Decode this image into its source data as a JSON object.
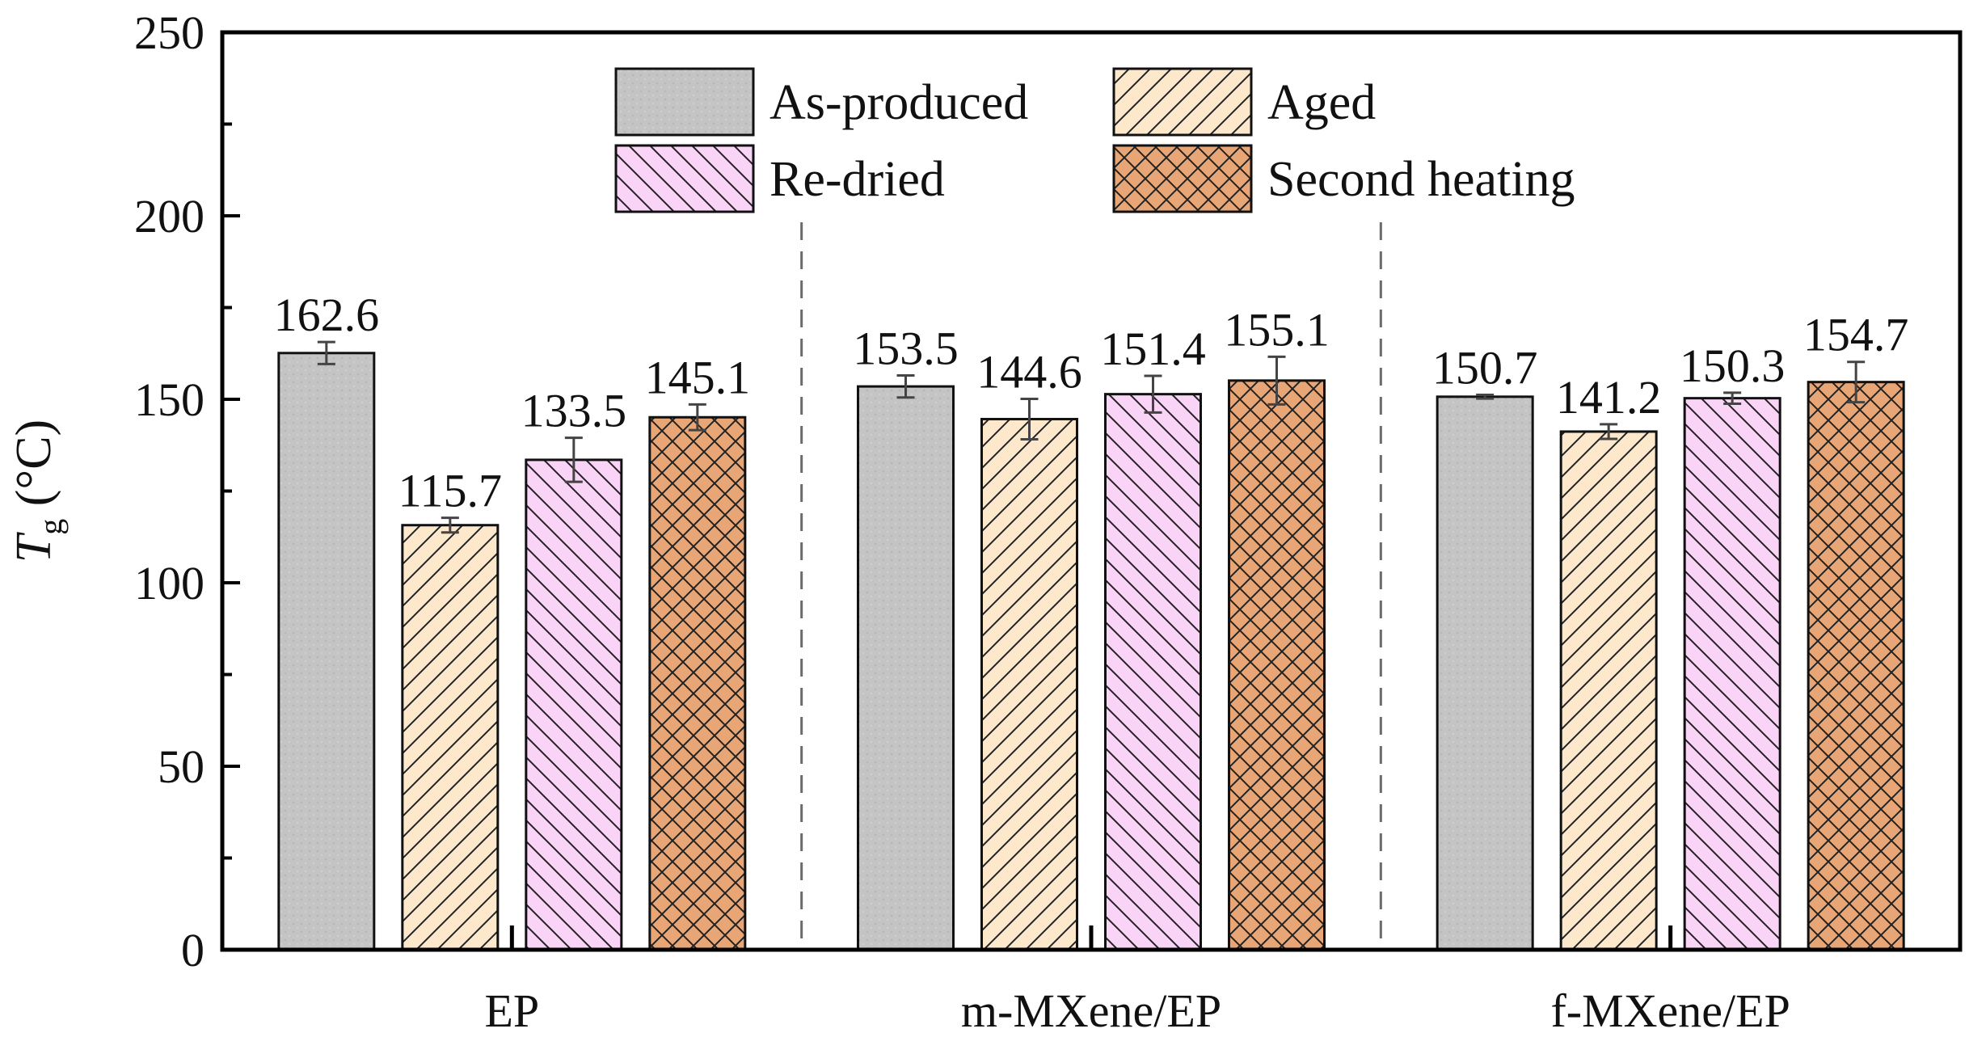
{
  "chart_data": {
    "type": "bar",
    "ylabel_main": "T",
    "ylabel_sub": "g",
    "ylabel_unit": " (°C)",
    "xlabel": "",
    "ylim": [
      0,
      250
    ],
    "yticks": [
      0,
      50,
      100,
      150,
      200,
      250
    ],
    "categories": [
      "EP",
      "m-MXene/EP",
      "f-MXene/EP"
    ],
    "series": [
      {
        "name": "As-produced",
        "values": [
          162.6,
          153.5,
          150.7
        ],
        "errors": [
          3.0,
          3.0,
          0.5
        ],
        "labels": [
          "162.6",
          "153.5",
          "150.7"
        ],
        "color": "#c4c4c4",
        "pattern": "dots"
      },
      {
        "name": "Aged",
        "values": [
          115.7,
          144.6,
          141.2
        ],
        "errors": [
          2.0,
          5.5,
          2.0
        ],
        "labels": [
          "115.7",
          "144.6",
          "141.2"
        ],
        "color": "#fde8cc",
        "pattern": "diag-right"
      },
      {
        "name": "Re-dried",
        "values": [
          133.5,
          151.4,
          150.3
        ],
        "errors": [
          6.0,
          5.0,
          1.5
        ],
        "labels": [
          "133.5",
          "151.4",
          "150.3"
        ],
        "color": "#f9d4f6",
        "pattern": "diag-left"
      },
      {
        "name": "Second heating",
        "values": [
          145.1,
          155.1,
          154.7
        ],
        "errors": [
          3.5,
          6.5,
          5.5
        ],
        "labels": [
          "145.1",
          "155.1",
          "154.7"
        ],
        "color": "#e8a676",
        "pattern": "crosshatch"
      }
    ],
    "legend_position": "top-center",
    "group_separators": "dashed"
  }
}
